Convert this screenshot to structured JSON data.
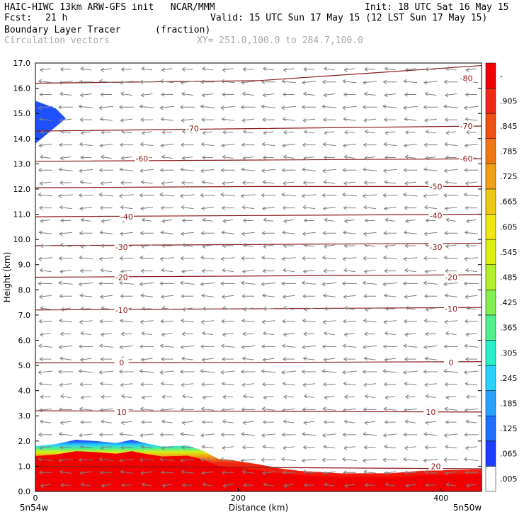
{
  "header": {
    "title": "HAIC-HIWC 13km ARW-GFS init   NCAR/MMM",
    "init": "Init: 18 UTC Sat 16 May 15",
    "fcst_label": "Fcst:",
    "fcst_value": "21 h",
    "valid": "Valid: 15 UTC Sun 17 May 15 (12 LST Sun 17 May 15)",
    "field_name": "Boundary Layer Tracer",
    "field_units": "(fraction)",
    "vector_label": "Circulation vectors",
    "xy_label": "XY= 251.0,100.0 to 284.7,100.0"
  },
  "chart_data": {
    "type": "heatmap",
    "title": "Boundary Layer Tracer (fraction)",
    "xlabel": "Distance (km)",
    "ylabel": "Height (km)",
    "xlim": [
      0,
      440
    ],
    "ylim": [
      0,
      17
    ],
    "x_ticks": [
      0,
      200,
      400
    ],
    "y_ticks": [
      0.0,
      1.0,
      2.0,
      3.0,
      4.0,
      5.0,
      6.0,
      7.0,
      8.0,
      9.0,
      10.0,
      11.0,
      12.0,
      13.0,
      14.0,
      15.0,
      16.0,
      17.0
    ],
    "x_endpoints": [
      "5n54w",
      "5n50w"
    ],
    "colorbar": {
      "labels": [
        ".005",
        ".065",
        ".125",
        ".185",
        ".245",
        ".305",
        ".365",
        ".425",
        ".485",
        ".545",
        ".605",
        ".665",
        ".725",
        ".785",
        ".845",
        ".905",
        "-"
      ],
      "colors": [
        "#ffffff",
        "#1e3cff",
        "#1e6eff",
        "#28a0ff",
        "#28d2ff",
        "#28f0c8",
        "#50f08c",
        "#82f050",
        "#b4f028",
        "#dcf014",
        "#f0e614",
        "#f0c814",
        "#f0a014",
        "#f07814",
        "#f05014",
        "#f02814",
        "#f00000"
      ]
    },
    "tracer_top_km": [
      [
        0,
        1.8
      ],
      [
        20,
        1.88
      ],
      [
        40,
        2.05
      ],
      [
        60,
        2.0
      ],
      [
        80,
        1.92
      ],
      [
        95,
        2.05
      ],
      [
        110,
        1.9
      ],
      [
        125,
        1.78
      ],
      [
        150,
        1.82
      ],
      [
        165,
        1.62
      ],
      [
        180,
        1.3
      ],
      [
        200,
        1.2
      ],
      [
        220,
        1.08
      ],
      [
        240,
        0.92
      ],
      [
        260,
        0.82
      ],
      [
        300,
        0.72
      ],
      [
        350,
        0.72
      ],
      [
        380,
        0.82
      ],
      [
        410,
        0.85
      ],
      [
        440,
        0.88
      ]
    ],
    "tracer_high_plume_km": [
      [
        0,
        15.0
      ],
      [
        0,
        13.8
      ],
      [
        15,
        14.3
      ],
      [
        30,
        14.8
      ],
      [
        20,
        15.2
      ],
      [
        0,
        15.5
      ]
    ],
    "temperature_contours_c": [
      {
        "label": "-80",
        "y": [
          16.2,
          16.3,
          16.9
        ]
      },
      {
        "label": "-70",
        "y": [
          14.3,
          14.4,
          14.5
        ]
      },
      {
        "label": "-60",
        "y": [
          13.1,
          13.15,
          13.2
        ]
      },
      {
        "label": "-50",
        "y": [
          12.05,
          12.1,
          12.1
        ]
      },
      {
        "label": "-40",
        "y": [
          10.9,
          10.95,
          11.0
        ]
      },
      {
        "label": "-30",
        "y": [
          9.75,
          9.8,
          9.85
        ]
      },
      {
        "label": "-20",
        "y": [
          8.5,
          8.55,
          8.6
        ]
      },
      {
        "label": "-10",
        "y": [
          7.2,
          7.25,
          7.3
        ]
      },
      {
        "label": "0",
        "y": [
          5.1,
          5.12,
          5.15
        ]
      },
      {
        "label": "10",
        "y": [
          3.2,
          3.18,
          3.15
        ]
      },
      {
        "label": "20",
        "y": [
          1.0,
          0.95,
          0.9
        ]
      }
    ],
    "contour_labels_shown": [
      {
        "text": "-80",
        "x": 425,
        "y": 16.4
      },
      {
        "text": "-70",
        "x": 155,
        "y": 14.4
      },
      {
        "text": "-70",
        "x": 425,
        "y": 14.5
      },
      {
        "text": "-60",
        "x": 105,
        "y": 13.2
      },
      {
        "text": "-60",
        "x": 425,
        "y": 13.2
      },
      {
        "text": "-50",
        "x": 395,
        "y": 12.1
      },
      {
        "text": "-40",
        "x": 90,
        "y": 10.9
      },
      {
        "text": "-40",
        "x": 395,
        "y": 10.95
      },
      {
        "text": "-30",
        "x": 85,
        "y": 9.7
      },
      {
        "text": "-30",
        "x": 395,
        "y": 9.7
      },
      {
        "text": "-20",
        "x": 85,
        "y": 8.5
      },
      {
        "text": "-20",
        "x": 410,
        "y": 8.5
      },
      {
        "text": "-10",
        "x": 85,
        "y": 7.2
      },
      {
        "text": "-10",
        "x": 410,
        "y": 7.25
      },
      {
        "text": "0",
        "x": 85,
        "y": 5.12
      },
      {
        "text": "0",
        "x": 410,
        "y": 5.12
      },
      {
        "text": "10",
        "x": 85,
        "y": 3.15
      },
      {
        "text": "10",
        "x": 390,
        "y": 3.15
      },
      {
        "text": "20",
        "x": 395,
        "y": 1.0
      }
    ],
    "vector_field_note": "westward (leftward) circulation vectors on a regular grid"
  }
}
